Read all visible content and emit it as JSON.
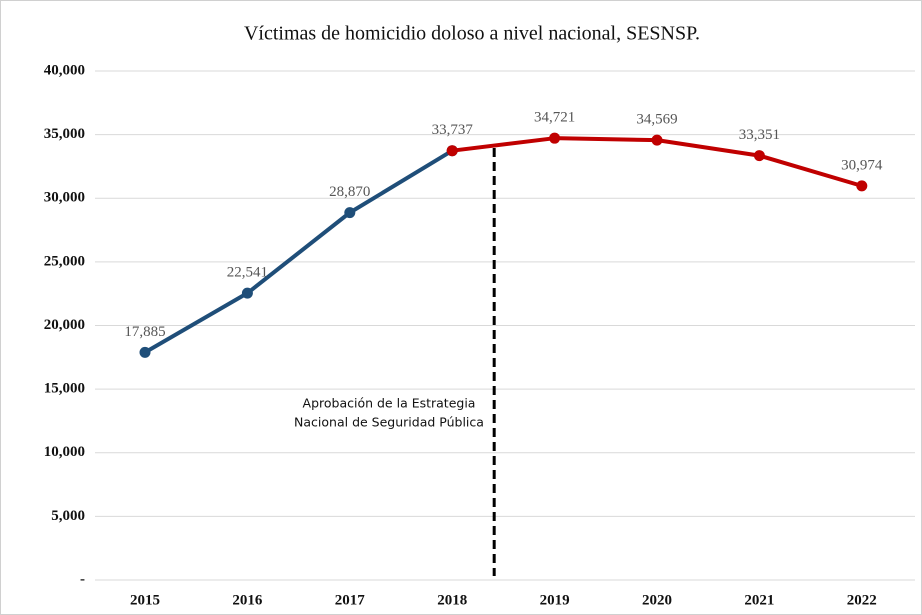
{
  "chart_data": {
    "type": "line",
    "title": "Víctimas de homicidio doloso a nivel nacional, SESNSP.",
    "categories": [
      "2015",
      "2016",
      "2017",
      "2018",
      "2019",
      "2020",
      "2021",
      "2022"
    ],
    "series": [
      {
        "color": "#1f4e79",
        "values": [
          17885,
          22541,
          28870,
          33737,
          null,
          null,
          null,
          null
        ],
        "value_labels": [
          "17,885",
          "22,541",
          "28,870",
          "33,737",
          null,
          null,
          null,
          null
        ]
      },
      {
        "color": "#c00000",
        "values": [
          null,
          null,
          null,
          33737,
          34721,
          34569,
          33351,
          30974
        ],
        "value_labels": [
          null,
          null,
          null,
          null,
          "34,721",
          "34,569",
          "33,351",
          "30,974"
        ]
      }
    ],
    "annotations": [
      "Aprobación de la Estrategia",
      "Nacional de Seguridad Pública"
    ],
    "ylim": [
      0,
      40000
    ],
    "yticks": [
      {
        "value": 0,
        "label": "-"
      },
      {
        "value": 5000,
        "label": "5,000"
      },
      {
        "value": 10000,
        "label": "10,000"
      },
      {
        "value": 15000,
        "label": "15,000"
      },
      {
        "value": 20000,
        "label": "20,000"
      },
      {
        "value": 25000,
        "label": "25,000"
      },
      {
        "value": 30000,
        "label": "30,000"
      },
      {
        "value": 35000,
        "label": "35,000"
      },
      {
        "value": 40000,
        "label": "40,000"
      }
    ],
    "grid": true
  }
}
